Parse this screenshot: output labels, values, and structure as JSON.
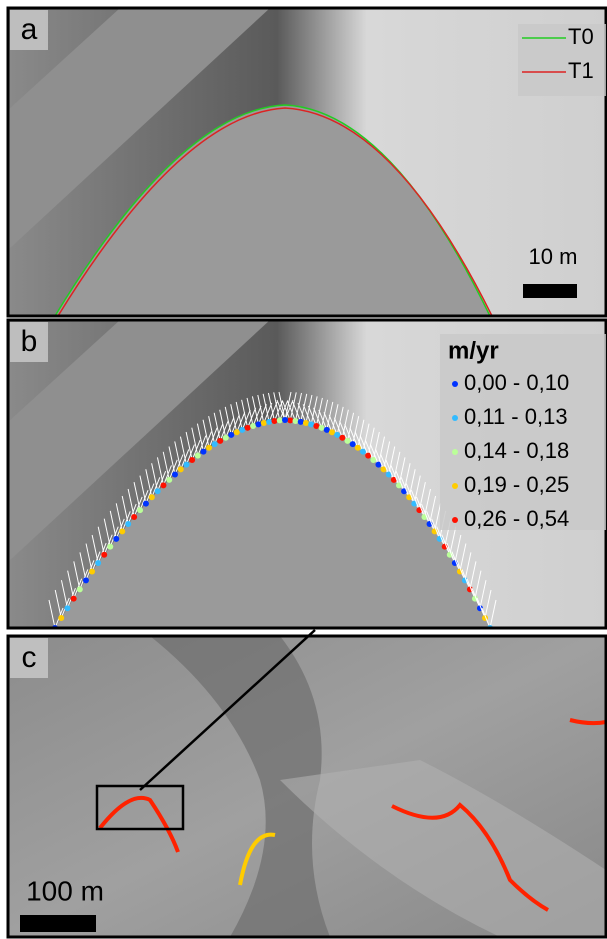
{
  "panels": [
    {
      "label": "a",
      "legend": [
        {
          "label": "T0",
          "color": "#22cc22"
        },
        {
          "label": "T1",
          "color": "#dd2222"
        }
      ],
      "scale_bar": "10 m"
    },
    {
      "label": "b",
      "legend_title": "m/yr",
      "legend": [
        {
          "label": "0,00 - 0,10",
          "color": "#0033ff"
        },
        {
          "label": "0,11 - 0,13",
          "color": "#33bbff"
        },
        {
          "label": "0,14 - 0,18",
          "color": "#bbff99"
        },
        {
          "label": "0,19 - 0,25",
          "color": "#ffcc00"
        },
        {
          "label": "0,26 - 0,54",
          "color": "#ff1100"
        }
      ]
    },
    {
      "label": "c",
      "scale_bar": "100 m"
    }
  ]
}
